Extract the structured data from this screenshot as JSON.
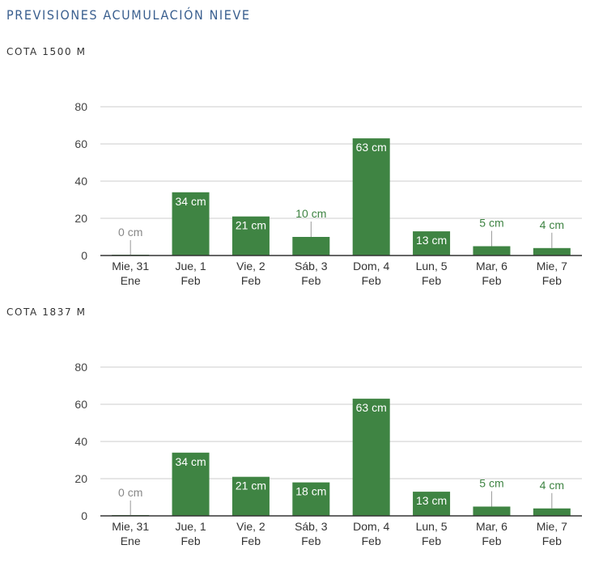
{
  "page": {
    "title": "PREVISIONES ACUMULACIÓN NIEVE"
  },
  "colors": {
    "bar": "#3f8443",
    "grid": "#cccccc",
    "axis": "#333333",
    "tick_label": "#444444",
    "label_outside": "#3f8443",
    "label_outside_zero": "#888888",
    "label_inside": "#ffffff",
    "title": "#3a5f8f"
  },
  "chart_data": [
    {
      "type": "bar",
      "title": "COTA 1500 M",
      "xlabel": "",
      "ylabel": "",
      "ylim": [
        0,
        80
      ],
      "yticks": [
        0,
        20,
        40,
        60,
        80
      ],
      "grid": true,
      "legend": "none",
      "unit": "cm",
      "categories": [
        [
          "Mie, 31",
          "Ene"
        ],
        [
          "Jue, 1",
          "Feb"
        ],
        [
          "Vie, 2",
          "Feb"
        ],
        [
          "Sáb, 3",
          "Feb"
        ],
        [
          "Dom, 4",
          "Feb"
        ],
        [
          "Lun, 5",
          "Feb"
        ],
        [
          "Mar, 6",
          "Feb"
        ],
        [
          "Mie, 7",
          "Feb"
        ]
      ],
      "values": [
        0,
        34,
        21,
        10,
        63,
        13,
        5,
        4
      ],
      "data_labels": [
        "0 cm",
        "34 cm",
        "21 cm",
        "10 cm",
        "63 cm",
        "13 cm",
        "5 cm",
        "4 cm"
      ]
    },
    {
      "type": "bar",
      "title": "COTA 1837 M",
      "xlabel": "",
      "ylabel": "",
      "ylim": [
        0,
        80
      ],
      "yticks": [
        0,
        20,
        40,
        60,
        80
      ],
      "grid": true,
      "legend": "none",
      "unit": "cm",
      "categories": [
        [
          "Mie, 31",
          "Ene"
        ],
        [
          "Jue, 1",
          "Feb"
        ],
        [
          "Vie, 2",
          "Feb"
        ],
        [
          "Sáb, 3",
          "Feb"
        ],
        [
          "Dom, 4",
          "Feb"
        ],
        [
          "Lun, 5",
          "Feb"
        ],
        [
          "Mar, 6",
          "Feb"
        ],
        [
          "Mie, 7",
          "Feb"
        ]
      ],
      "values": [
        0,
        34,
        21,
        18,
        63,
        13,
        5,
        4
      ],
      "data_labels": [
        "0 cm",
        "34 cm",
        "21 cm",
        "18 cm",
        "63 cm",
        "13 cm",
        "5 cm",
        "4 cm"
      ]
    }
  ]
}
